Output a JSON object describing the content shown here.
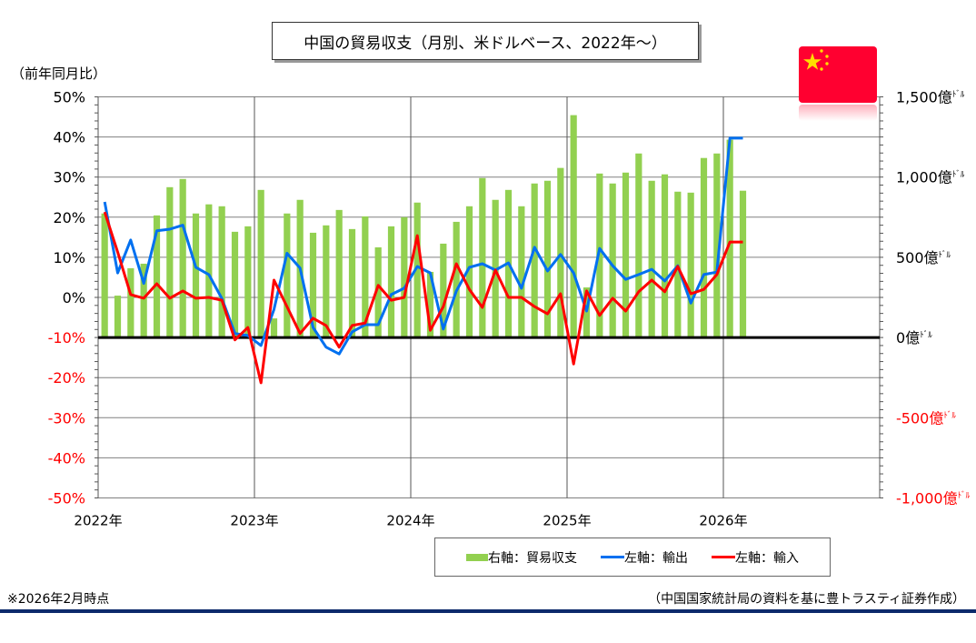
{
  "title": "中国の貿易収支（月別、米ドルベース、2022年～）",
  "left_unit": "（前年同月比）",
  "footnote": "※2026年2月時点",
  "source": "（中国国家統計局の資料を基に豊トラスティ証券作成）",
  "colors": {
    "bar": "#92d050",
    "export": "#0070f0",
    "import": "#ff0000",
    "negative_label": "#ff0000",
    "rule": "#0c2a6b"
  },
  "flag_icon": "china-flag",
  "chart_data": {
    "type": "bar+line",
    "title": "中国の貿易収支（月別、米ドルベース、2022年～）",
    "x_tick_labels": [
      "2022年",
      "2023年",
      "2024年",
      "2025年",
      "2026年"
    ],
    "x_range": [
      "2022-01",
      "2026-12"
    ],
    "left_axis": {
      "label": "（前年同月比）",
      "ylim": [
        -50,
        50
      ],
      "ticks": [
        "50%",
        "40%",
        "30%",
        "20%",
        "10%",
        "0%",
        "-10%",
        "-20%",
        "-30%",
        "-40%",
        "-50%"
      ],
      "tick_values": [
        50,
        40,
        30,
        20,
        10,
        0,
        -10,
        -20,
        -30,
        -40,
        -50
      ]
    },
    "right_axis": {
      "ylim": [
        -1000,
        1500
      ],
      "unit": "ﾄﾞﾙ",
      "ticks": [
        "1,500億",
        "1,000億",
        "500億",
        "0億",
        "-500億",
        "-1,000億"
      ],
      "tick_values": [
        1500,
        1000,
        500,
        0,
        -500,
        -1000
      ]
    },
    "grid": true,
    "legend": {
      "position": "bottom",
      "entries": [
        "右軸：貿易収支",
        "左軸：輸出",
        "左軸：輸入"
      ]
    },
    "months": [
      "2022-01",
      "2022-02",
      "2022-03",
      "2022-04",
      "2022-05",
      "2022-06",
      "2022-07",
      "2022-08",
      "2022-09",
      "2022-10",
      "2022-11",
      "2022-12",
      "2023-01",
      "2023-02",
      "2023-03",
      "2023-04",
      "2023-05",
      "2023-06",
      "2023-07",
      "2023-08",
      "2023-09",
      "2023-10",
      "2023-11",
      "2023-12",
      "2024-01",
      "2024-02",
      "2024-03",
      "2024-04",
      "2024-05",
      "2024-06",
      "2024-07",
      "2024-08",
      "2024-09",
      "2024-10",
      "2024-11",
      "2024-12",
      "2025-01",
      "2025-02",
      "2025-03",
      "2025-04",
      "2025-05",
      "2025-06",
      "2025-07",
      "2025-08",
      "2025-09",
      "2025-10",
      "2025-11",
      "2025-12",
      "2026-01",
      "2026-02"
    ],
    "series": [
      {
        "name": "右軸：貿易収支",
        "type": "bar",
        "axis": "right",
        "values": [
          773,
          261,
          432,
          460,
          761,
          937,
          988,
          773,
          830,
          818,
          659,
          693,
          920,
          119,
          773,
          858,
          653,
          699,
          795,
          676,
          755,
          562,
          693,
          750,
          841,
          409,
          585,
          721,
          818,
          994,
          858,
          920,
          818,
          960,
          977,
          1057,
          1386,
          312,
          1022,
          960,
          1028,
          1147,
          977,
          1017,
          909,
          903,
          1119,
          1147,
          1233,
          915
        ]
      },
      {
        "name": "左軸：輸出",
        "type": "line",
        "axis": "left",
        "values": [
          23.8,
          6.1,
          14.3,
          3.5,
          16.6,
          17,
          18,
          7.5,
          5.7,
          -0.3,
          -9,
          -9.5,
          -12,
          -3,
          11,
          7.3,
          -7.5,
          -12.4,
          -14.1,
          -8.6,
          -6.8,
          -6.8,
          0.7,
          2.3,
          7.7,
          6.1,
          -7.9,
          1.6,
          7.5,
          8.4,
          6.8,
          8.6,
          2.3,
          12.5,
          6.6,
          10.7,
          6.1,
          -3.4,
          12.2,
          7.9,
          4.5,
          5.7,
          7,
          4.1,
          7.9,
          -1.4,
          5.7,
          6.3,
          39.7,
          39.7
        ]
      },
      {
        "name": "左軸：輸入",
        "type": "line",
        "axis": "left",
        "values": [
          21.3,
          11.3,
          0.7,
          -0.2,
          3.4,
          -0.2,
          1.6,
          -0.2,
          0,
          -0.7,
          -10.6,
          -7.5,
          -21.3,
          4.3,
          -2.3,
          -9,
          -5.2,
          -7,
          -12.4,
          -7,
          -6.4,
          3,
          -0.7,
          0,
          15.4,
          -8.2,
          -2.3,
          8.4,
          2,
          -2.5,
          6.8,
          0,
          0,
          -2.3,
          -4.1,
          0.9,
          -16.6,
          1.6,
          -4.5,
          -0.2,
          -3.4,
          1.4,
          4.3,
          1.4,
          7.7,
          0.9,
          2,
          5.7,
          13.8,
          13.8
        ]
      }
    ]
  }
}
